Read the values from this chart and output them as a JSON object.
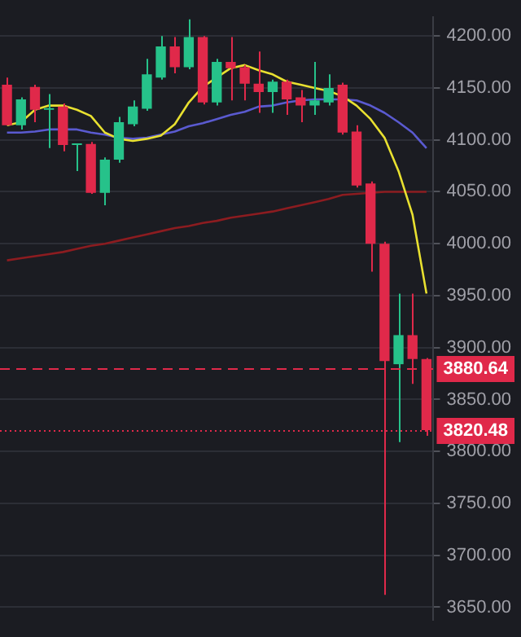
{
  "chart_data": {
    "type": "candlestick",
    "categories": [
      null,
      null,
      null,
      null,
      null,
      null,
      null,
      null,
      null,
      null,
      null,
      null,
      null,
      null,
      null,
      null,
      null,
      null,
      null,
      null,
      null,
      null,
      null,
      null,
      null,
      null,
      null,
      null,
      null,
      null,
      null
    ],
    "ohlc": [
      [
        4153,
        4160,
        4114,
        4114
      ],
      [
        4114,
        4141,
        4110,
        4139
      ],
      [
        4151,
        4153,
        4117,
        4129
      ],
      [
        4130,
        4144,
        4092,
        4129
      ],
      [
        4132,
        4135,
        4089,
        4095
      ],
      [
        4095,
        4096,
        4070,
        4096
      ],
      [
        4096,
        4098,
        4048,
        4049
      ],
      [
        4049,
        4083,
        4037,
        4081
      ],
      [
        4081,
        4122,
        4078,
        4117
      ],
      [
        4115,
        4138,
        4113,
        4132
      ],
      [
        4130,
        4178,
        4128,
        4163
      ],
      [
        4160,
        4200,
        4158,
        4190
      ],
      [
        4190,
        4199,
        4164,
        4170
      ],
      [
        4170,
        4216,
        4168,
        4199
      ],
      [
        4199,
        4200,
        4134,
        4136
      ],
      [
        4136,
        4178,
        4133,
        4175
      ],
      [
        4175,
        4199,
        4138,
        4169
      ],
      [
        4170,
        4172,
        4138,
        4154
      ],
      [
        4154,
        4185,
        4126,
        4146
      ],
      [
        4146,
        4158,
        4126,
        4156
      ],
      [
        4156,
        4158,
        4124,
        4139
      ],
      [
        4141,
        4148,
        4117,
        4133
      ],
      [
        4133,
        4175,
        4124,
        4138
      ],
      [
        4136,
        4163,
        4133,
        4150
      ],
      [
        4153,
        4155,
        4105,
        4107
      ],
      [
        4108,
        4114,
        4054,
        4056
      ],
      [
        4058,
        4060,
        3973,
        4000
      ],
      [
        4000,
        4002,
        3662,
        3887
      ],
      [
        3884,
        3952,
        3809,
        3912
      ],
      [
        3912,
        3952,
        3865,
        3889
      ],
      [
        3889,
        3890,
        3815,
        3820.48
      ]
    ],
    "colors": [
      "#e0294a",
      "#26c28a",
      "#e0294a",
      "#26c28a",
      "#e0294a",
      "#26c28a",
      "#e0294a",
      "#26c28a",
      "#26c28a",
      "#26c28a",
      "#26c28a",
      "#26c28a",
      "#e0294a",
      "#26c28a",
      "#e0294a",
      "#26c28a",
      "#e0294a",
      "#e0294a",
      "#e0294a",
      "#26c28a",
      "#e0294a",
      "#e0294a",
      "#26c28a",
      "#26c28a",
      "#e0294a",
      "#e0294a",
      "#e0294a",
      "#e0294a",
      "#26c28a",
      "#e0294a",
      "#e0294a"
    ],
    "series": [
      {
        "type": "line",
        "color": "#e8e030",
        "values": [
          4114,
          4117,
          4129,
          4133,
          4133,
          4129,
          4123,
          4107,
          4101,
          4099,
          4101,
          4104,
          4115,
          4136,
          4151,
          4160,
          4169,
          4172,
          4167,
          4163,
          4156,
          4153,
          4150,
          4147,
          4142,
          4133,
          4120,
          4102,
          4070,
          4028,
          3952
        ]
      },
      {
        "type": "line",
        "color": "#5a5ad0",
        "values": [
          4107,
          4107,
          4108,
          4110,
          4110,
          4110,
          4107,
          4105,
          4102,
          4101,
          4102,
          4105,
          4108,
          4113,
          4116,
          4120,
          4124,
          4127,
          4132,
          4133,
          4136,
          4138,
          4139,
          4139,
          4139,
          4138,
          4133,
          4126,
          4117,
          4107,
          4092
        ]
      },
      {
        "type": "line",
        "color": "#8c1c20",
        "values": [
          3984,
          3986,
          3988,
          3990,
          3992,
          3995,
          3998,
          4000,
          4003,
          4006,
          4009,
          4012,
          4015,
          4017,
          4020,
          4022,
          4025,
          4027,
          4029,
          4031,
          4034,
          4037,
          4040,
          4043,
          4047,
          4048,
          4049,
          4050,
          4050,
          4050,
          4050
        ]
      }
    ],
    "ylim": [
      3638,
      4218
    ],
    "yticks": [
      {
        "value": 3650,
        "label": "3650.00"
      },
      {
        "value": 3700,
        "label": "3700.00"
      },
      {
        "value": 3750,
        "label": "3750.00"
      },
      {
        "value": 3800,
        "label": "3800.00"
      },
      {
        "value": 3850,
        "label": "3850.00"
      },
      {
        "value": 3900,
        "label": "3900.00"
      },
      {
        "value": 3950,
        "label": "3950.00"
      },
      {
        "value": 4000,
        "label": "4000.00"
      },
      {
        "value": 4050,
        "label": "4050.00"
      },
      {
        "value": 4100,
        "label": "4100.00"
      },
      {
        "value": 4150,
        "label": "4150.00"
      },
      {
        "value": 4200,
        "label": "4200.00"
      }
    ],
    "ref_lines": [
      {
        "axis": "y",
        "value": 3880.64,
        "label": "3880.64",
        "color": "#e0294a",
        "line_style": "dashed"
      },
      {
        "axis": "y",
        "value": 3820.48,
        "label": "3820.48",
        "color": "#e0294a",
        "line_style": "dotted"
      }
    ],
    "grid": "y",
    "marker": "none",
    "line_style": "solid"
  }
}
